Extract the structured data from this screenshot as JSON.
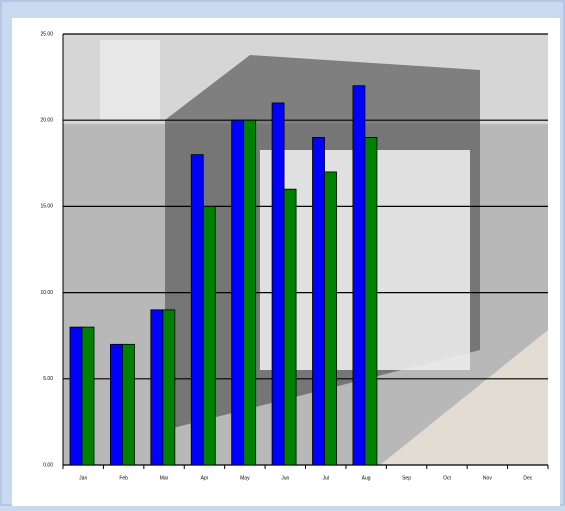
{
  "chart_data": {
    "type": "bar",
    "categories": [
      "Jan",
      "Feb",
      "Mar",
      "Apr",
      "May",
      "Jun",
      "Jul",
      "Aug",
      "Sep",
      "Oct",
      "Nov",
      "Dec"
    ],
    "series": [
      {
        "color": "#0000ff",
        "values": [
          8,
          7,
          9,
          18,
          20,
          21,
          19,
          22,
          null,
          null,
          null,
          null
        ]
      },
      {
        "color": "#008000",
        "values": [
          8,
          7,
          9,
          15,
          20,
          16,
          17,
          19,
          null,
          null,
          null,
          null
        ]
      }
    ],
    "ylim": [
      0,
      25
    ],
    "yticks": [
      {
        "value": 0,
        "label": "0.00"
      },
      {
        "value": 5,
        "label": "5.00"
      },
      {
        "value": 10,
        "label": "10.00"
      },
      {
        "value": 15,
        "label": "15.00"
      },
      {
        "value": 20,
        "label": "20.00"
      },
      {
        "value": 25,
        "label": "25.00"
      }
    ],
    "grid": true
  }
}
